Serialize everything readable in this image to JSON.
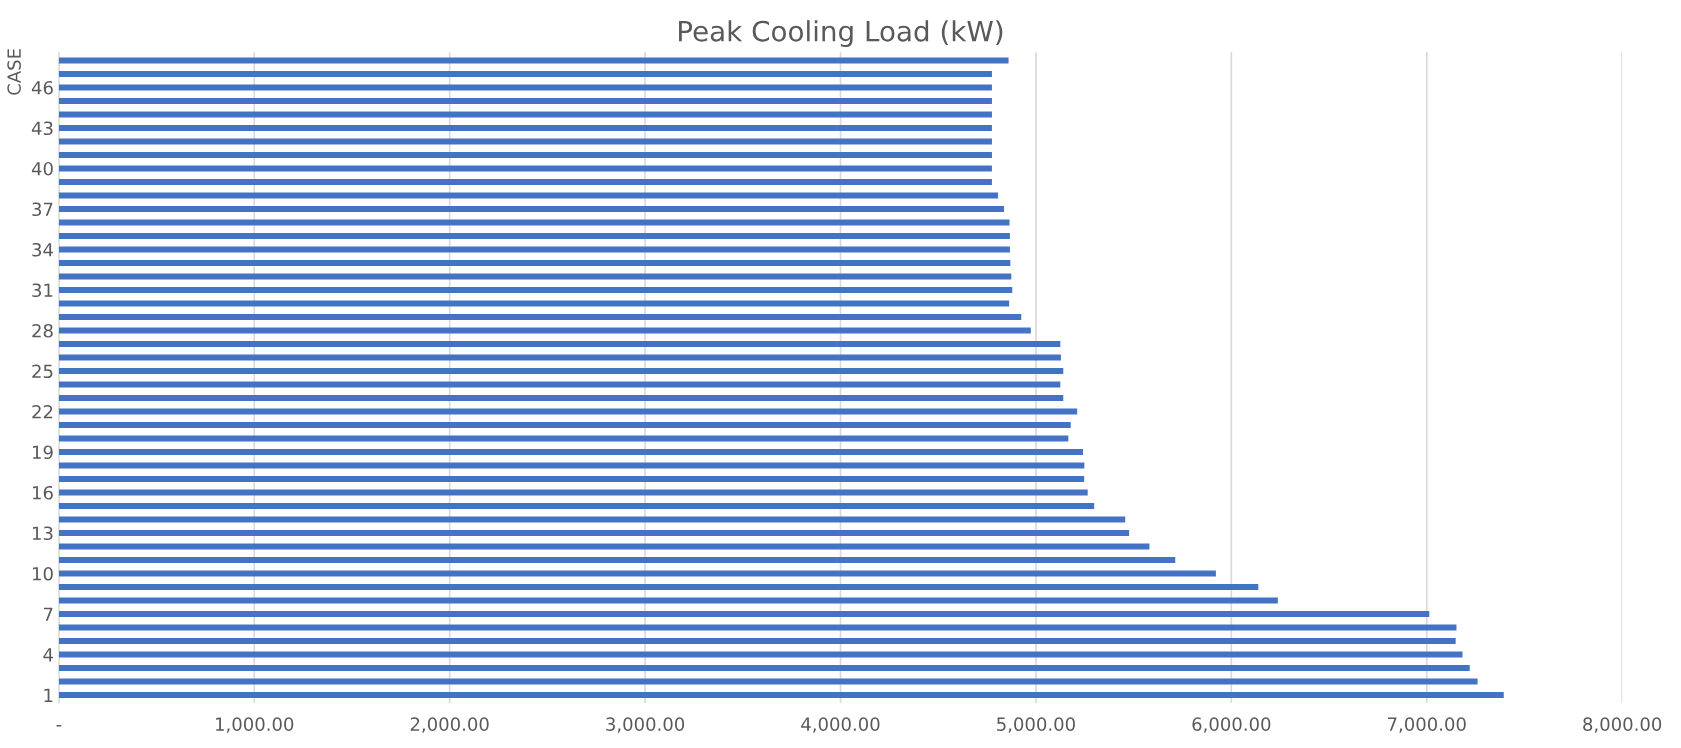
{
  "chart_data": {
    "type": "bar",
    "orientation": "horizontal",
    "title": "Peak Cooling Load (kW)",
    "ylabel": "CASE",
    "categories": [
      null,
      null,
      "46",
      null,
      null,
      "43",
      null,
      null,
      "40",
      null,
      null,
      "37",
      null,
      null,
      "34",
      null,
      null,
      "31",
      null,
      null,
      "28",
      null,
      null,
      "25",
      null,
      null,
      "22",
      null,
      null,
      "19",
      null,
      null,
      "16",
      null,
      null,
      "13",
      null,
      null,
      "10",
      null,
      null,
      "7",
      null,
      null,
      "4",
      null,
      null,
      "1"
    ],
    "values": [
      4860,
      4775,
      4775,
      4775,
      4775,
      4775,
      4775,
      4775,
      4775,
      4775,
      4806,
      4837,
      4865,
      4867,
      4867,
      4869,
      4874,
      4879,
      4863,
      4925,
      4974,
      5125,
      5128,
      5140,
      5125,
      5140,
      5211,
      5178,
      5166,
      5241,
      5248,
      5247,
      5265,
      5298,
      5457,
      5477,
      5581,
      5713,
      5921,
      6138,
      6238,
      7013,
      7152,
      7148,
      7183,
      7220,
      7260,
      7394
    ],
    "color": "#4472c4",
    "xlim": [
      0,
      8000
    ],
    "xticks": [
      {
        "value": 0,
        "label": "-"
      },
      {
        "value": 1000,
        "label": "1,000.00"
      },
      {
        "value": 2000,
        "label": "2,000.00"
      },
      {
        "value": 3000,
        "label": "3,000.00"
      },
      {
        "value": 4000,
        "label": "4,000.00"
      },
      {
        "value": 5000,
        "label": "5,000.00"
      },
      {
        "value": 6000,
        "label": "6,000.00"
      },
      {
        "value": 7000,
        "label": "7,000.00"
      },
      {
        "value": 8000,
        "label": "8,000.00"
      }
    ],
    "grid": "x"
  }
}
